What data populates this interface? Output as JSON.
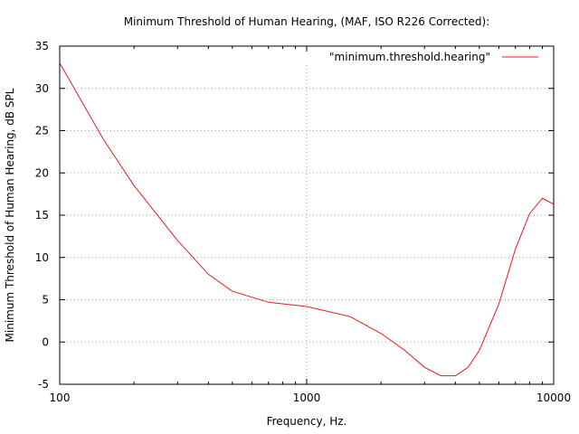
{
  "chart_data": {
    "type": "line",
    "title": "Minimum Threshold of Human Hearing, (MAF, ISO R226 Corrected):",
    "xlabel": "Frequency, Hz.",
    "ylabel": "Minimum Threshold of Human Hearing, dB SPL",
    "xscale": "log",
    "xlim": [
      100,
      10000
    ],
    "ylim": [
      -5,
      35
    ],
    "x_ticks": [
      100,
      1000,
      10000
    ],
    "x_tick_labels": [
      "100",
      "1000",
      "10000"
    ],
    "y_ticks": [
      -5,
      0,
      5,
      10,
      15,
      20,
      25,
      30,
      35
    ],
    "y_tick_labels": [
      "-5",
      "0",
      "5",
      "10",
      "15",
      "20",
      "25",
      "30",
      "35"
    ],
    "grid": true,
    "legend_position": "top-right",
    "series": [
      {
        "name": "\"minimum.threshold.hearing\"",
        "color": "#e41a1c",
        "x": [
          100,
          150,
          200,
          300,
          400,
          500,
          700,
          1000,
          1500,
          2000,
          2500,
          3000,
          3500,
          4000,
          4500,
          5000,
          6000,
          7000,
          8000,
          9000,
          10000
        ],
        "y": [
          33,
          24,
          18.5,
          12,
          8,
          6,
          4.7,
          4.2,
          3,
          1,
          -1,
          -3,
          -4,
          -4,
          -3,
          -1,
          4.5,
          11,
          15.2,
          17,
          16.3
        ]
      }
    ]
  }
}
